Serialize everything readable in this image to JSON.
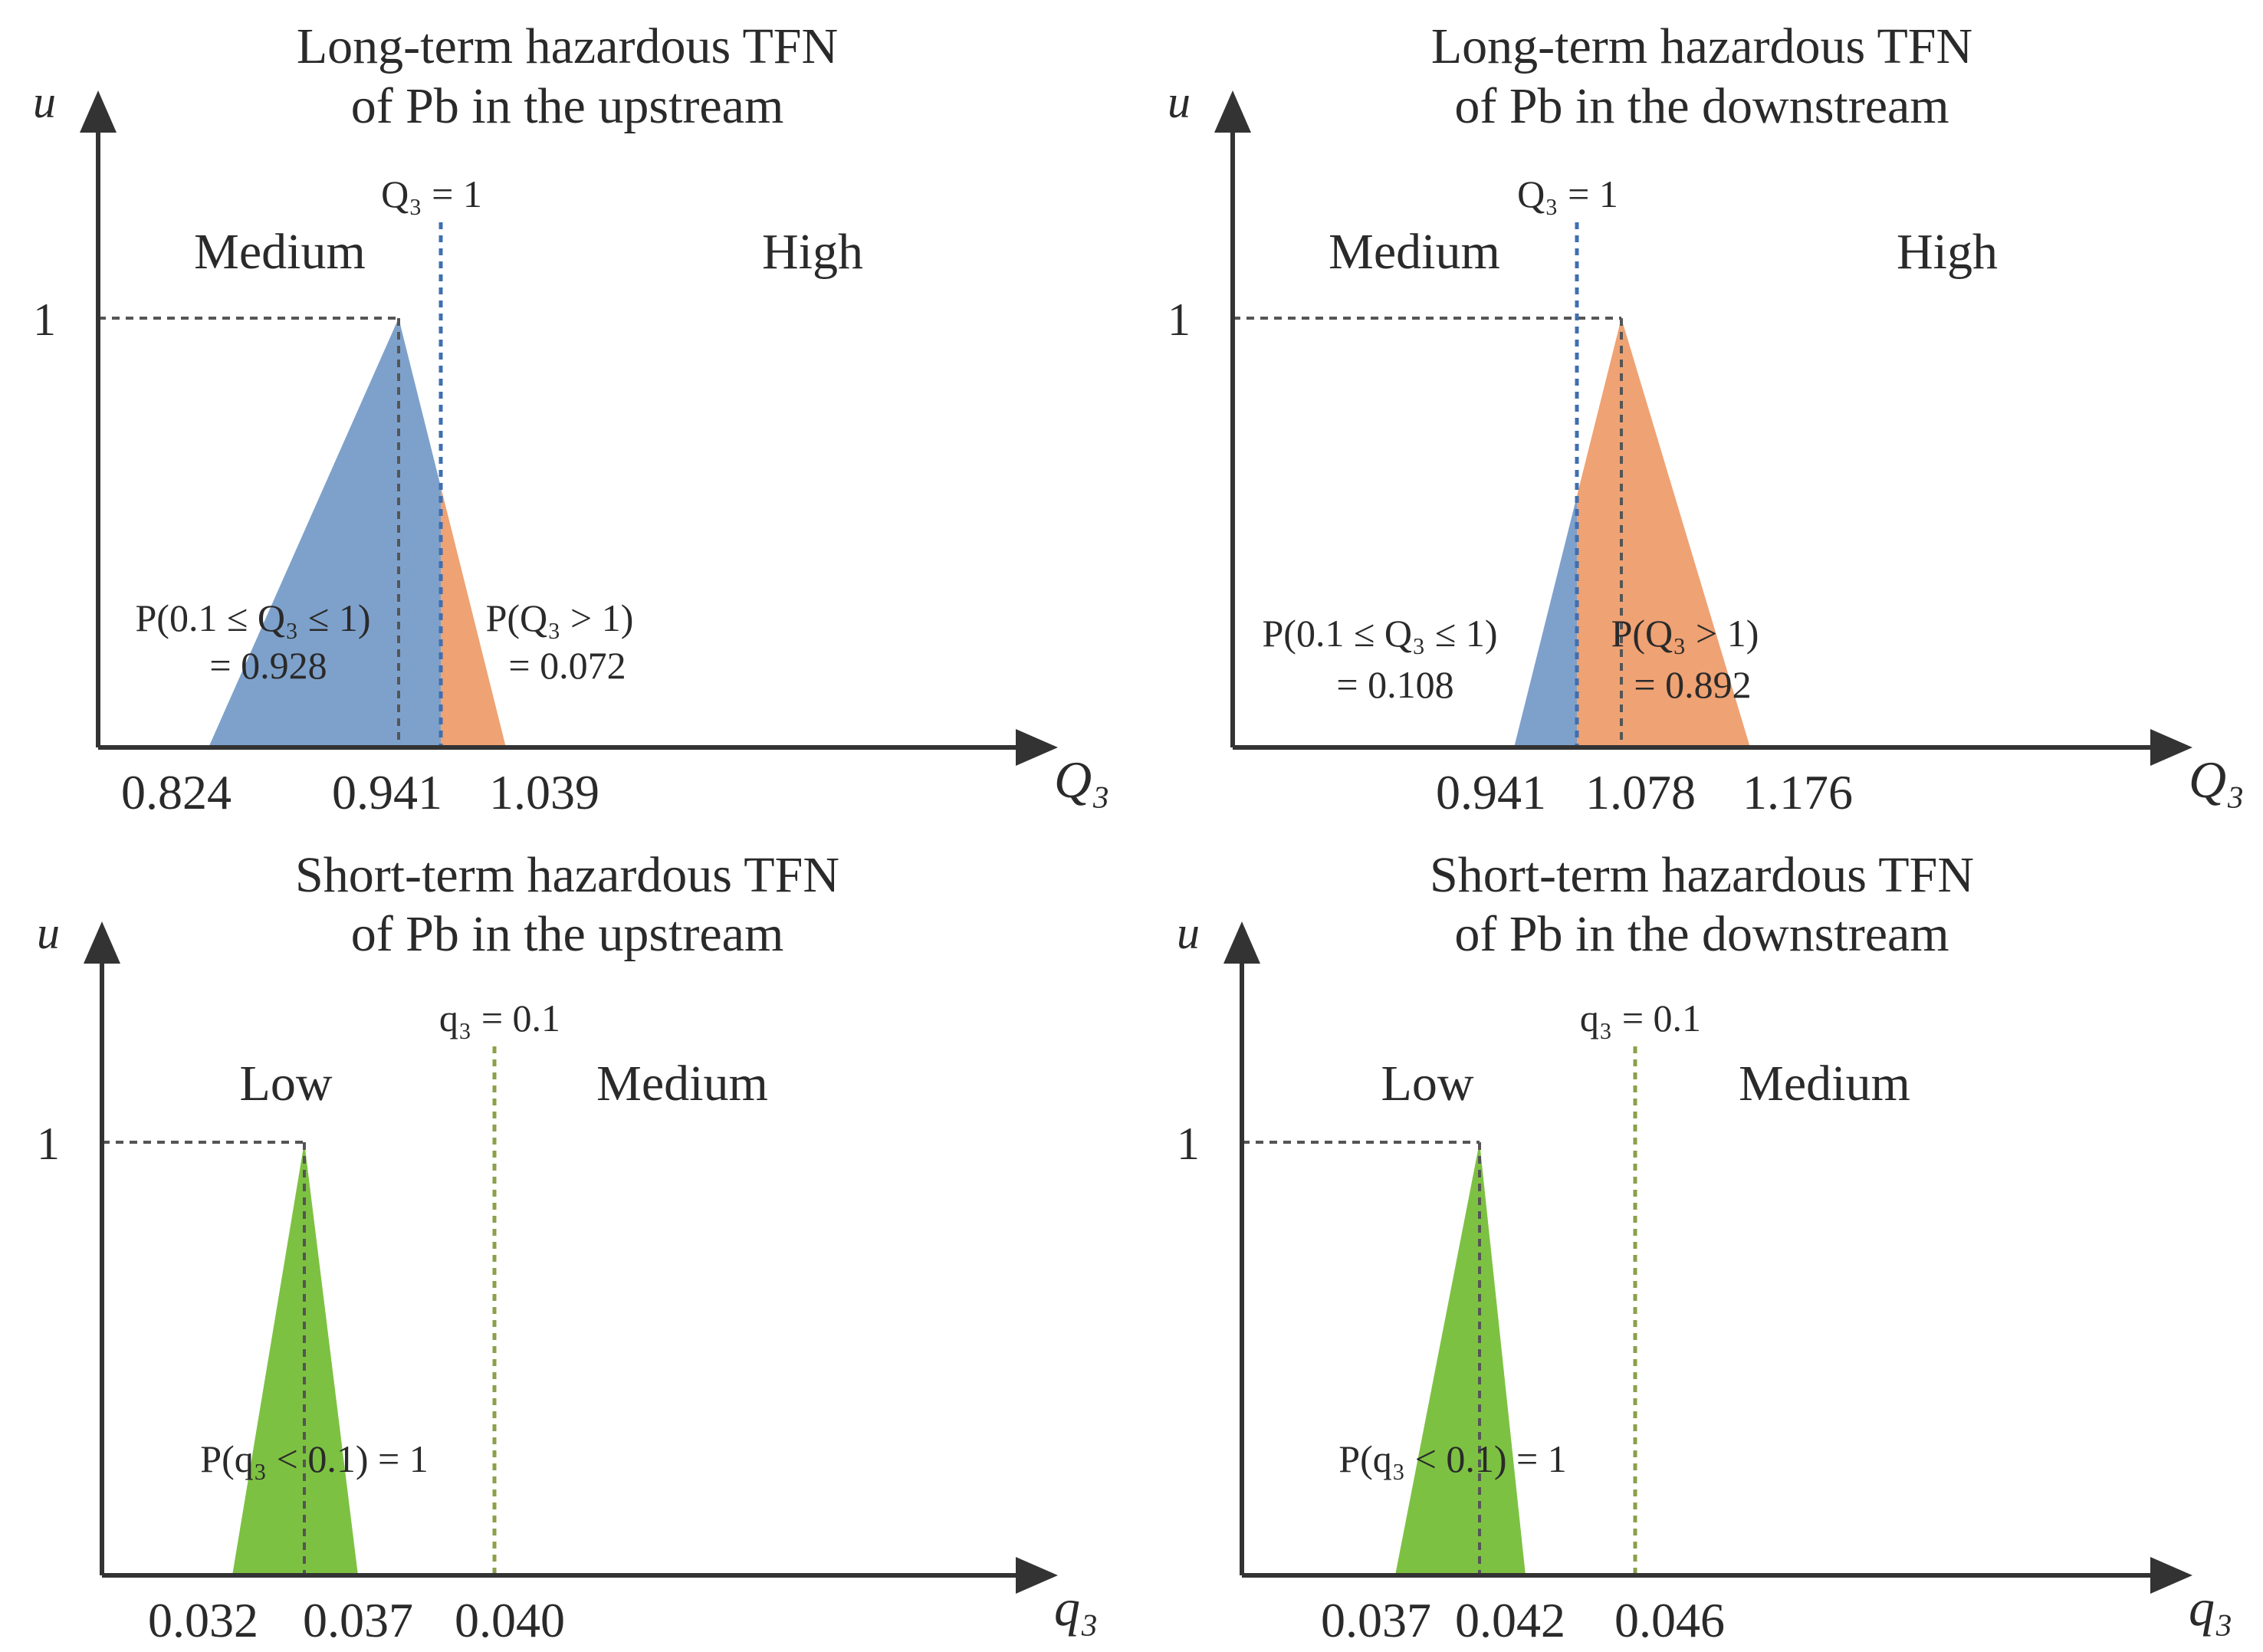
{
  "colors": {
    "blue": "#7ea1cb",
    "orange": "#efa273",
    "green": "#7dc142",
    "blue_line": "#3f6fb0",
    "green_line": "#8aa04a",
    "axis": "#333333"
  },
  "chart_data": [
    {
      "type": "area",
      "title_line1": "Long-term hazardous TFN",
      "title_line2": "of Pb in the upstream",
      "ylabel": "u",
      "xlabel": "Q₃",
      "y_peak_label": "1",
      "tfn": [
        0.824,
        0.941,
        1.039
      ],
      "tick_labels": [
        "0.824",
        "0.941",
        "1.039"
      ],
      "threshold": 1.0,
      "threshold_label": "Q₃ = 1",
      "threshold_color": "#3f6fb0",
      "left_region": "Medium",
      "right_region": "High",
      "left_color": "#7ea1cb",
      "right_color": "#efa273",
      "left_prob_label": "P(0.1 ≤ Q₃ ≤ 1)",
      "left_prob_value": "= 0.928",
      "right_prob_label": "P(Q₃ > 1)",
      "right_prob_value": "= 0.072"
    },
    {
      "type": "area",
      "title_line1": "Long-term hazardous TFN",
      "title_line2": "of Pb in the downstream",
      "ylabel": "u",
      "xlabel": "Q₃",
      "y_peak_label": "1",
      "tfn": [
        0.941,
        1.078,
        1.176
      ],
      "tick_labels": [
        "0.941",
        "1.078",
        "1.176"
      ],
      "threshold": 1.0,
      "threshold_label": "Q₃ = 1",
      "threshold_color": "#3f6fb0",
      "left_region": "Medium",
      "right_region": "High",
      "left_color": "#7ea1cb",
      "right_color": "#efa273",
      "left_prob_label": "P(0.1 ≤ Q₃ ≤ 1)",
      "left_prob_value": "= 0.108",
      "right_prob_label": "P(Q₃ > 1)",
      "right_prob_value": "= 0.892"
    },
    {
      "type": "area",
      "title_line1": "Short-term hazardous TFN",
      "title_line2": "of Pb in the upstream",
      "ylabel": "u",
      "xlabel": "q₃",
      "y_peak_label": "1",
      "tfn": [
        0.032,
        0.037,
        0.04
      ],
      "tick_labels": [
        "0.032",
        "0.037",
        "0.040"
      ],
      "threshold": 0.1,
      "threshold_label": "q₃ = 0.1",
      "threshold_color": "#8aa04a",
      "left_region": "Low",
      "right_region": "Medium",
      "left_color": "#7dc142",
      "right_color": "#7dc142",
      "left_prob_label": "P(q₃ < 0.1) = 1",
      "left_prob_value": "",
      "right_prob_label": "",
      "right_prob_value": ""
    },
    {
      "type": "area",
      "title_line1": "Short-term hazardous TFN",
      "title_line2": "of Pb in the downstream",
      "ylabel": "u",
      "xlabel": "q₃",
      "y_peak_label": "1",
      "tfn": [
        0.037,
        0.042,
        0.046
      ],
      "tick_labels": [
        "0.037",
        "0.042",
        "0.046"
      ],
      "threshold": 0.1,
      "threshold_label": "q₃ = 0.1",
      "threshold_color": "#8aa04a",
      "left_region": "Low",
      "right_region": "Medium",
      "left_color": "#7dc142",
      "right_color": "#7dc142",
      "left_prob_label": "P(q₃ < 0.1) = 1",
      "left_prob_value": "",
      "right_prob_label": "",
      "right_prob_value": ""
    }
  ]
}
